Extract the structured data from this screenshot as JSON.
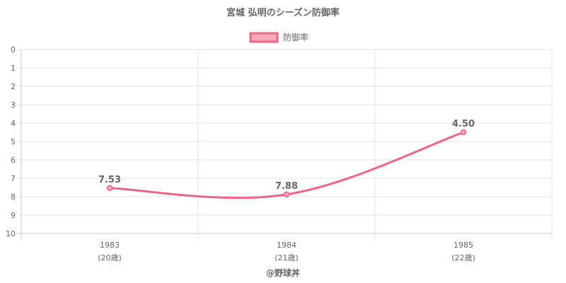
{
  "chart_data": {
    "type": "line",
    "title": "宮城 弘明のシーズン防御率",
    "categories": [
      "1983",
      "1984",
      "1985"
    ],
    "subcategories": [
      "(20歳)",
      "(21歳)",
      "(22歳)"
    ],
    "series": [
      {
        "name": "防御率",
        "values": [
          7.53,
          7.88,
          4.5
        ],
        "labels": [
          "7.53",
          "7.88",
          "4.50"
        ]
      }
    ],
    "ylim": [
      0,
      10
    ],
    "y_reversed": true,
    "yticks": [
      "0",
      "1",
      "2",
      "3",
      "4",
      "5",
      "6",
      "7",
      "8",
      "9",
      "10"
    ],
    "grid": true,
    "legend_position": "top",
    "colors": {
      "line": "#f06585",
      "fill": "#f9a8b9"
    }
  },
  "credit": "@野球丼"
}
